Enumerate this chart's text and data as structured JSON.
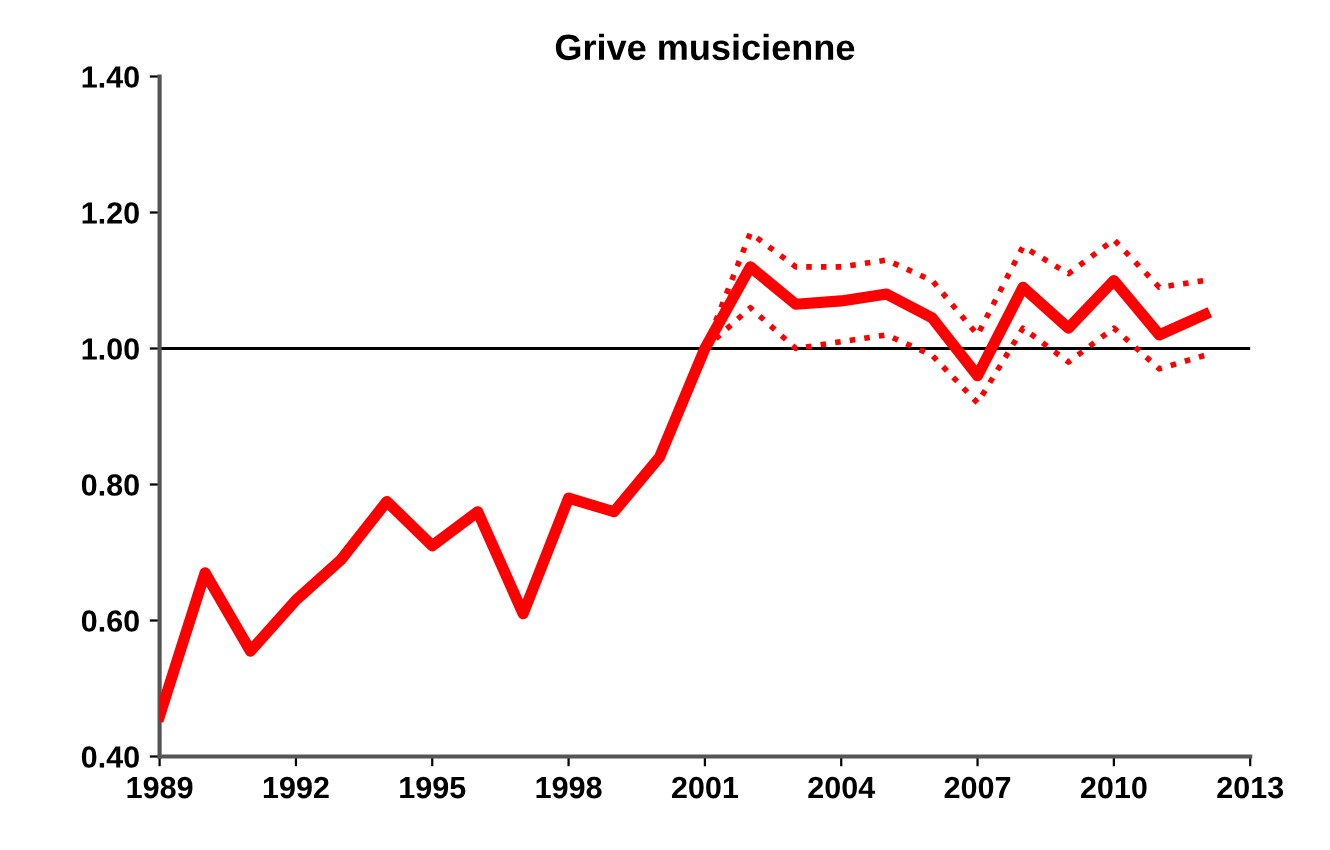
{
  "chart_data": {
    "type": "line",
    "title": "Grive musicienne",
    "x": [
      1989,
      1990,
      1991,
      1992,
      1993,
      1994,
      1995,
      1996,
      1997,
      1998,
      1999,
      2000,
      2001,
      2002,
      2003,
      2004,
      2005,
      2006,
      2007,
      2008,
      2009,
      2010,
      2011,
      2012
    ],
    "series": [
      {
        "color": "#ff0000",
        "line_style": "dotted",
        "x": [
          2001,
          2002,
          2003,
          2004,
          2005,
          2006,
          2007,
          2008,
          2009,
          2010,
          2011,
          2012
        ],
        "values": [
          1.0,
          1.17,
          1.12,
          1.12,
          1.13,
          1.1,
          1.02,
          1.15,
          1.11,
          1.16,
          1.09,
          1.1
        ]
      },
      {
        "color": "#ff0000",
        "line_style": "dotted",
        "x": [
          2001,
          2002,
          2003,
          2004,
          2005,
          2006,
          2007,
          2008,
          2009,
          2010,
          2011,
          2012
        ],
        "values": [
          1.0,
          1.06,
          1.0,
          1.01,
          1.02,
          0.99,
          0.92,
          1.03,
          0.98,
          1.03,
          0.97,
          0.99
        ]
      },
      {
        "color": "#ff0000",
        "values": [
          0.46,
          0.67,
          0.555,
          0.63,
          0.69,
          0.775,
          0.71,
          0.76,
          0.61,
          0.78,
          0.76,
          0.84,
          1.0,
          1.12,
          1.065,
          1.07,
          1.08,
          1.045,
          0.96,
          1.09,
          1.03,
          1.1,
          1.02,
          1.05
        ]
      }
    ],
    "xlim": [
      1989,
      2013
    ],
    "xticks": [
      1989,
      1992,
      1995,
      1998,
      2001,
      2004,
      2007,
      2010,
      2013
    ],
    "ylim": [
      0.4,
      1.4
    ],
    "yticks": [
      {
        "value": 0.4,
        "label": "0.40"
      },
      {
        "value": 0.6,
        "label": "0.60"
      },
      {
        "value": 0.8,
        "label": "0.80"
      },
      {
        "value": 1.0,
        "label": "1.00"
      },
      {
        "value": 1.2,
        "label": "1.20"
      },
      {
        "value": 1.4,
        "label": "1.40"
      }
    ],
    "ref_lines": [
      {
        "axis": "y",
        "value": 1.0,
        "color": "#000000"
      }
    ],
    "grid": false,
    "marker": "none",
    "line_style": "solid"
  }
}
